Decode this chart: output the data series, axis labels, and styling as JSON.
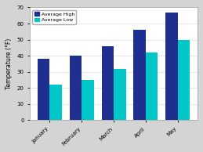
{
  "months": [
    "January",
    "February",
    "March",
    "April",
    "May"
  ],
  "avg_high": [
    38,
    40,
    46,
    56,
    67
  ],
  "avg_low": [
    22,
    25,
    32,
    42,
    50
  ],
  "color_high": "#1f2f8f",
  "color_low": "#00c8c8",
  "ylabel": "Temperature (°F)",
  "ylim": [
    0,
    70
  ],
  "yticks": [
    0,
    10,
    20,
    30,
    40,
    50,
    60,
    70
  ],
  "plot_bg_color": "#ffffff",
  "fig_bg_color": "#d4d4d4",
  "grid_color": "#e8e8e8",
  "legend_labels": [
    "Average High",
    "Average Low"
  ],
  "bar_width": 0.38
}
